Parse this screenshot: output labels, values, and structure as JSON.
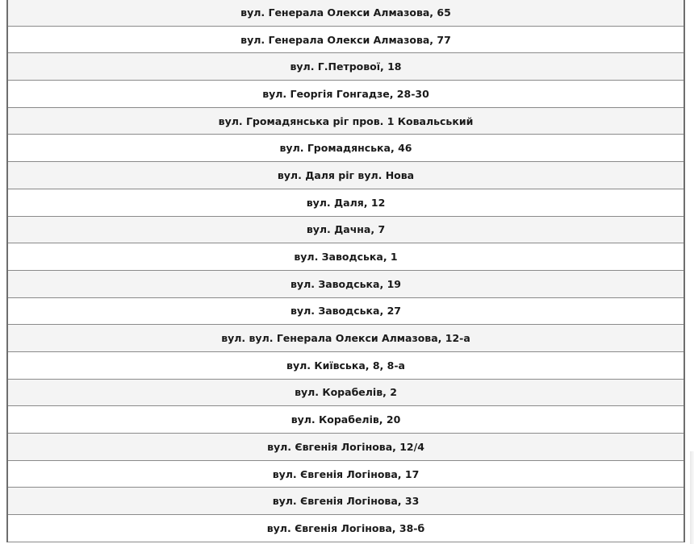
{
  "addresses": [
    "вул. Генерала Олекси Алмазова, 65",
    "вул. Генерала Олекси Алмазова, 77",
    "вул. Г.Петрової, 18",
    "вул. Георгія Гонгадзе, 28-30",
    "вул. Громадянська ріг пров. 1 Ковальський",
    "вул. Громадянська, 46",
    "вул. Даля ріг вул. Нова",
    "вул. Даля, 12",
    "вул. Дачна, 7",
    "вул. Заводська, 1",
    "вул. Заводська, 19",
    "вул. Заводська, 27",
    "вул. вул. Генерала Олекси Алмазова, 12-а",
    "вул. Київська, 8, 8-а",
    "вул. Корабелів, 2",
    "вул. Корабелів, 20",
    "вул. Євгенія Логінова, 12/4",
    "вул. Євгенія Логінова, 17",
    "вул. Євгенія Логінова, 33",
    "вул. Євгенія Логінова, 38-б"
  ]
}
